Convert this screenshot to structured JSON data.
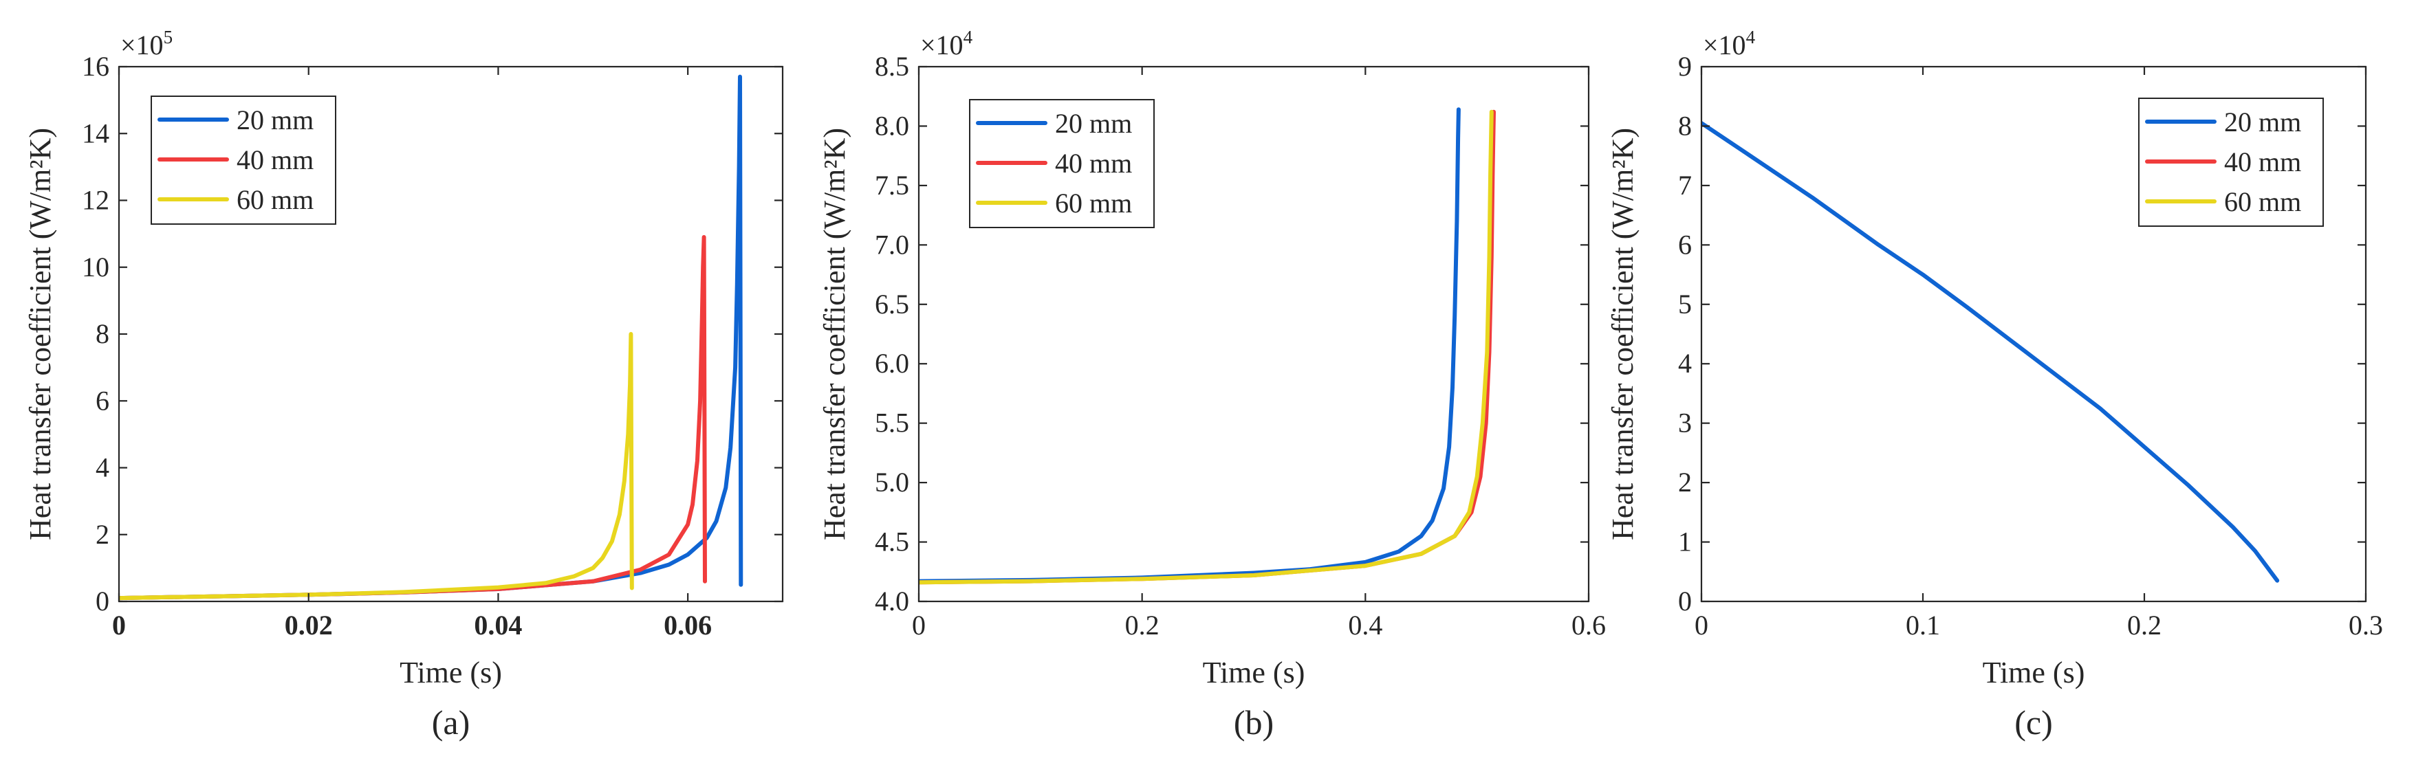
{
  "chart_data": [
    {
      "type": "line",
      "caption": "(a)",
      "xlabel": "Time (s)",
      "ylabel": "Heat transfer coefficient (W/m²K)",
      "multiplier": {
        "base": "×10",
        "exp": "5"
      },
      "xlim": [
        0,
        0.07
      ],
      "ylim": [
        0,
        16
      ],
      "xticks": [
        0,
        0.02,
        0.04,
        0.06
      ],
      "xtick_labels": [
        "0",
        "0.02",
        "0.04",
        "0.06"
      ],
      "xtick_bold": true,
      "yticks": [
        0,
        2,
        4,
        6,
        8,
        10,
        12,
        14,
        16
      ],
      "ytick_labels": [
        "0",
        "2",
        "4",
        "6",
        "8",
        "10",
        "12",
        "14",
        "16"
      ],
      "legend_position": "top-left",
      "series": [
        {
          "name": "20 mm",
          "color": "#0F64D2",
          "x": [
            0,
            0.01,
            0.02,
            0.03,
            0.04,
            0.05,
            0.055,
            0.058,
            0.06,
            0.062,
            0.063,
            0.064,
            0.0645,
            0.065,
            0.0652,
            0.0654,
            0.0655,
            0.06555,
            0.0656
          ],
          "y": [
            0.1,
            0.15,
            0.2,
            0.27,
            0.37,
            0.6,
            0.85,
            1.1,
            1.4,
            1.9,
            2.4,
            3.4,
            4.6,
            7.0,
            9.5,
            13.0,
            15.7,
            8.0,
            0.5
          ]
        },
        {
          "name": "40 mm",
          "color": "#F03C3C",
          "x": [
            0,
            0.01,
            0.02,
            0.03,
            0.04,
            0.05,
            0.055,
            0.058,
            0.06,
            0.0605,
            0.061,
            0.0613,
            0.0615,
            0.0616,
            0.0617,
            0.06175,
            0.0618
          ],
          "y": [
            0.1,
            0.15,
            0.2,
            0.27,
            0.37,
            0.6,
            0.95,
            1.4,
            2.3,
            2.9,
            4.2,
            6.0,
            8.5,
            10.0,
            10.9,
            6.0,
            0.6
          ]
        },
        {
          "name": "60 mm",
          "color": "#E8D61E",
          "x": [
            0,
            0.01,
            0.02,
            0.03,
            0.04,
            0.045,
            0.048,
            0.05,
            0.051,
            0.052,
            0.0528,
            0.0533,
            0.0537,
            0.0539,
            0.054,
            0.05405,
            0.0541
          ],
          "y": [
            0.1,
            0.15,
            0.2,
            0.28,
            0.42,
            0.55,
            0.75,
            1.0,
            1.3,
            1.8,
            2.6,
            3.6,
            5.0,
            6.5,
            8.0,
            4.0,
            0.4
          ]
        }
      ]
    },
    {
      "type": "line",
      "caption": "(b)",
      "xlabel": "Time (s)",
      "ylabel": "Heat transfer coefficient (W/m²K)",
      "multiplier": {
        "base": "×10",
        "exp": "4"
      },
      "xlim": [
        0,
        0.6
      ],
      "ylim": [
        4.0,
        8.5
      ],
      "xticks": [
        0,
        0.2,
        0.4,
        0.6
      ],
      "xtick_labels": [
        "0",
        "0.2",
        "0.4",
        "0.6"
      ],
      "xtick_bold": false,
      "yticks": [
        4.0,
        4.5,
        5.0,
        5.5,
        6.0,
        6.5,
        7.0,
        7.5,
        8.0,
        8.5
      ],
      "ytick_labels": [
        "4.0",
        "4.5",
        "5.0",
        "5.5",
        "6.0",
        "6.5",
        "7.0",
        "7.5",
        "8.0",
        "8.5"
      ],
      "legend_position": "top-left",
      "series": [
        {
          "name": "20 mm",
          "color": "#0F64D2",
          "x": [
            0,
            0.1,
            0.2,
            0.3,
            0.35,
            0.4,
            0.43,
            0.45,
            0.46,
            0.47,
            0.475,
            0.478,
            0.48,
            0.482,
            0.483,
            0.4835
          ],
          "y": [
            4.17,
            4.18,
            4.2,
            4.24,
            4.27,
            4.33,
            4.42,
            4.55,
            4.68,
            4.95,
            5.3,
            5.8,
            6.4,
            7.2,
            7.9,
            8.14
          ]
        },
        {
          "name": "40 mm",
          "color": "#F03C3C",
          "x": [
            0,
            0.1,
            0.2,
            0.3,
            0.4,
            0.45,
            0.48,
            0.495,
            0.503,
            0.508,
            0.511,
            0.513,
            0.514,
            0.515
          ],
          "y": [
            4.16,
            4.17,
            4.19,
            4.22,
            4.3,
            4.4,
            4.55,
            4.75,
            5.05,
            5.5,
            6.1,
            6.9,
            7.6,
            8.12
          ]
        },
        {
          "name": "60 mm",
          "color": "#E8D61E",
          "x": [
            0,
            0.1,
            0.2,
            0.3,
            0.4,
            0.45,
            0.48,
            0.493,
            0.5,
            0.505,
            0.509,
            0.511,
            0.512,
            0.513
          ],
          "y": [
            4.16,
            4.17,
            4.19,
            4.22,
            4.3,
            4.4,
            4.55,
            4.75,
            5.05,
            5.5,
            6.1,
            6.9,
            7.6,
            8.12
          ]
        }
      ]
    },
    {
      "type": "line",
      "caption": "(c)",
      "xlabel": "Time (s)",
      "ylabel": "Heat transfer coefficient (W/m²K)",
      "multiplier": {
        "base": "×10",
        "exp": "4"
      },
      "xlim": [
        0,
        0.3
      ],
      "ylim": [
        0,
        9
      ],
      "xticks": [
        0,
        0.1,
        0.2,
        0.3
      ],
      "xtick_labels": [
        "0",
        "0.1",
        "0.2",
        "0.3"
      ],
      "xtick_bold": false,
      "yticks": [
        0,
        1,
        2,
        3,
        4,
        5,
        6,
        7,
        8,
        9
      ],
      "ytick_labels": [
        "0",
        "1",
        "2",
        "3",
        "4",
        "5",
        "6",
        "7",
        "8",
        "9"
      ],
      "legend_position": "top-right",
      "series": [
        {
          "name": "20 mm",
          "color": "#0F64D2",
          "x": [
            0,
            0.02,
            0.05,
            0.08,
            0.1,
            0.12,
            0.15,
            0.18,
            0.2,
            0.22,
            0.24,
            0.25,
            0.255,
            0.26
          ],
          "y": [
            8.05,
            7.55,
            6.8,
            6.0,
            5.5,
            4.95,
            4.1,
            3.25,
            2.6,
            1.95,
            1.25,
            0.85,
            0.6,
            0.35
          ]
        },
        {
          "name": "40 mm",
          "color": "#F03C3C",
          "x": [],
          "y": []
        },
        {
          "name": "60 mm",
          "color": "#E8D61E",
          "x": [],
          "y": []
        }
      ]
    }
  ]
}
